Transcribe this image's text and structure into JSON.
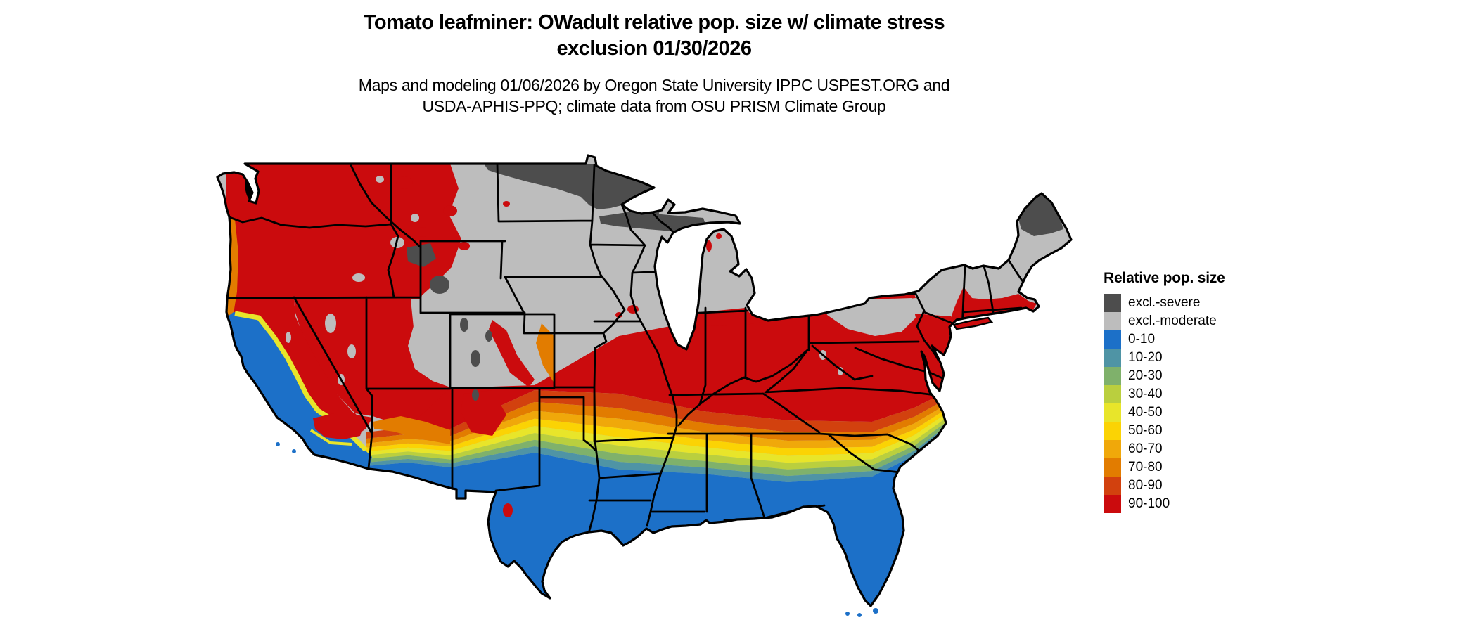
{
  "title": {
    "line1": "Tomato leafminer: OWadult relative pop. size w/ climate stress",
    "line2": "exclusion 01/30/2026"
  },
  "subtitle": {
    "line1": "Maps and modeling 01/06/2026 by Oregon State University IPPC USPEST.ORG and",
    "line2": "USDA-APHIS-PPQ; climate data from OSU PRISM Climate Group"
  },
  "legend": {
    "title": "Relative pop. size",
    "items": [
      {
        "label": "excl.-severe",
        "color": "#4d4d4d"
      },
      {
        "label": "excl.-moderate",
        "color": "#bdbdbd"
      },
      {
        "label": "0-10",
        "color": "#1c70c8"
      },
      {
        "label": "10-20",
        "color": "#4f94a5"
      },
      {
        "label": "20-30",
        "color": "#7fb16b"
      },
      {
        "label": "30-40",
        "color": "#bacf3e"
      },
      {
        "label": "40-50",
        "color": "#e8e52a"
      },
      {
        "label": "50-60",
        "color": "#fbd304"
      },
      {
        "label": "60-70",
        "color": "#f0a80a"
      },
      {
        "label": "70-80",
        "color": "#e27c00"
      },
      {
        "label": "80-90",
        "color": "#d2410e"
      },
      {
        "label": "90-100",
        "color": "#cb0b0d"
      }
    ]
  },
  "map": {
    "region": "Continental United States",
    "background_color": "#ffffff",
    "boundary_color": "#000000",
    "description": "Choropleth raster of relative population size with climate stress exclusion; gray exclusion zones in the north, red high-suitability mid-latitude band, grading through orange/yellow/green to blue along the Gulf Coast, Florida, south Texas, California valleys and southern Arizona"
  }
}
